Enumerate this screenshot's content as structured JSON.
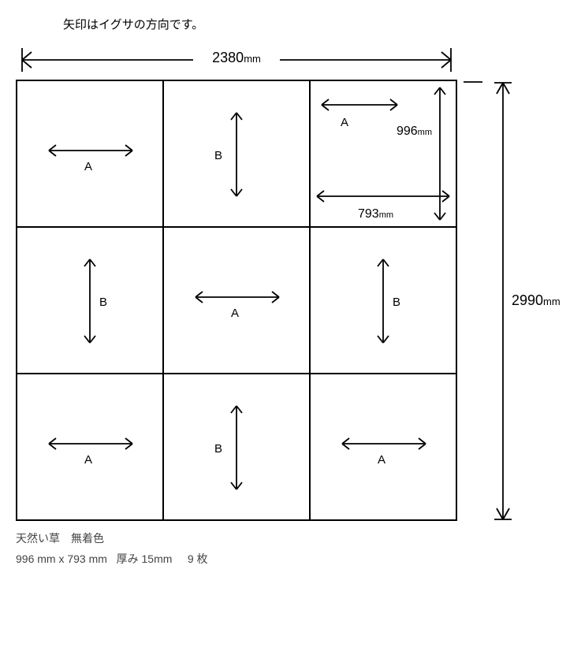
{
  "note": "矢印はイグサの方向です。",
  "dimensions": {
    "width_label": "2380",
    "width_unit": "mm",
    "height_label": "2990",
    "height_unit": "mm",
    "cell_height_label": "996",
    "cell_height_unit": "mm",
    "cell_width_label": "793",
    "cell_width_unit": "mm"
  },
  "grid": {
    "rows": 3,
    "cols": 3,
    "cells": [
      {
        "orientation": "horizontal",
        "label": "A",
        "label_pos": "below"
      },
      {
        "orientation": "vertical",
        "label": "B",
        "label_pos": "left"
      },
      {
        "orientation": "horizontal",
        "label": "A",
        "label_pos": "below",
        "has_inner_dims": true
      },
      {
        "orientation": "vertical",
        "label": "B",
        "label_pos": "right"
      },
      {
        "orientation": "horizontal",
        "label": "A",
        "label_pos": "below"
      },
      {
        "orientation": "vertical",
        "label": "B",
        "label_pos": "right"
      },
      {
        "orientation": "horizontal",
        "label": "A",
        "label_pos": "below"
      },
      {
        "orientation": "vertical",
        "label": "B",
        "label_pos": "left"
      },
      {
        "orientation": "horizontal",
        "label": "A",
        "label_pos": "below"
      }
    ]
  },
  "footer": {
    "line1": "天然い草　無着色",
    "size_text": "996 mm x 793 mm",
    "thickness_label": "厚み",
    "thickness_value": "15mm",
    "count_value": "9",
    "count_unit": "枚"
  },
  "style": {
    "stroke": "#000000",
    "stroke_width": 1.8,
    "arrow_len_h": 110,
    "arrow_len_v": 110,
    "arrowhead": 9
  }
}
